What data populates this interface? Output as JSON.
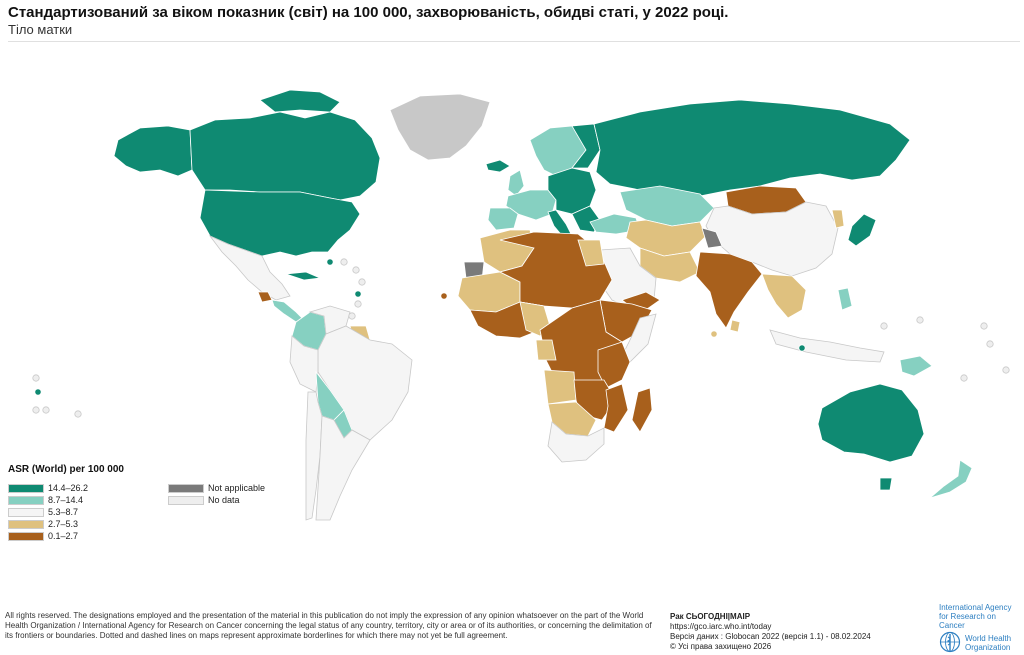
{
  "header": {
    "title": "Стандартизований за віком показник (світ) на 100 000, захворюваність, обидві статі, у 2022 році.",
    "subtitle": "Тіло матки"
  },
  "colors": {
    "c1": "#0f8a72",
    "c2": "#86d0c1",
    "c3": "#f5f5f5",
    "c4": "#dfc17f",
    "c5": "#a8601c",
    "na": "#7a7a7a",
    "nodata": "#eeeeee",
    "greenland": "#c8c8c8",
    "outline": "#ffffff",
    "disputed": "#bdbdbd"
  },
  "legend": {
    "title": "ASR (World) per 100 000",
    "classes": [
      {
        "label": "14.4–26.2",
        "color": "#0f8a72"
      },
      {
        "label": "8.7–14.4",
        "color": "#86d0c1"
      },
      {
        "label": "5.3–8.7",
        "color": "#f5f5f5"
      },
      {
        "label": "2.7–5.3",
        "color": "#dfc17f"
      },
      {
        "label": "0.1–2.7",
        "color": "#a8601c"
      }
    ],
    "extra": [
      {
        "label": "Not applicable",
        "color": "#7a7a7a"
      },
      {
        "label": "No data",
        "color": "#eeeeee"
      }
    ]
  },
  "footer": {
    "disclaimer": "All rights reserved. The designations employed and the presentation of the material in this publication do not imply the expression of any opinion whatsoever on the part of the World Health Organization / International Agency for Research on Cancer concerning the legal status of any country, territory, city or area or of its authorities, or concerning the delimitation of its frontiers or boundaries. Dotted and dashed lines on maps represent approximate borderlines for which there may not yet be full agreement.",
    "credits_title": "Рак СЬОГОДНІ|МАІР",
    "credits_url": "https://gco.iarc.who.int/today",
    "credits_version": "Версія даних : Globocan 2022 (версія 1.1) - 08.02.2024",
    "credits_copyright": "© Усі права захищено 2026",
    "iarc_line1": "International Agency",
    "iarc_line2": "for Research on Cancer",
    "who_line1": "World Health",
    "who_line2": "Organization"
  }
}
